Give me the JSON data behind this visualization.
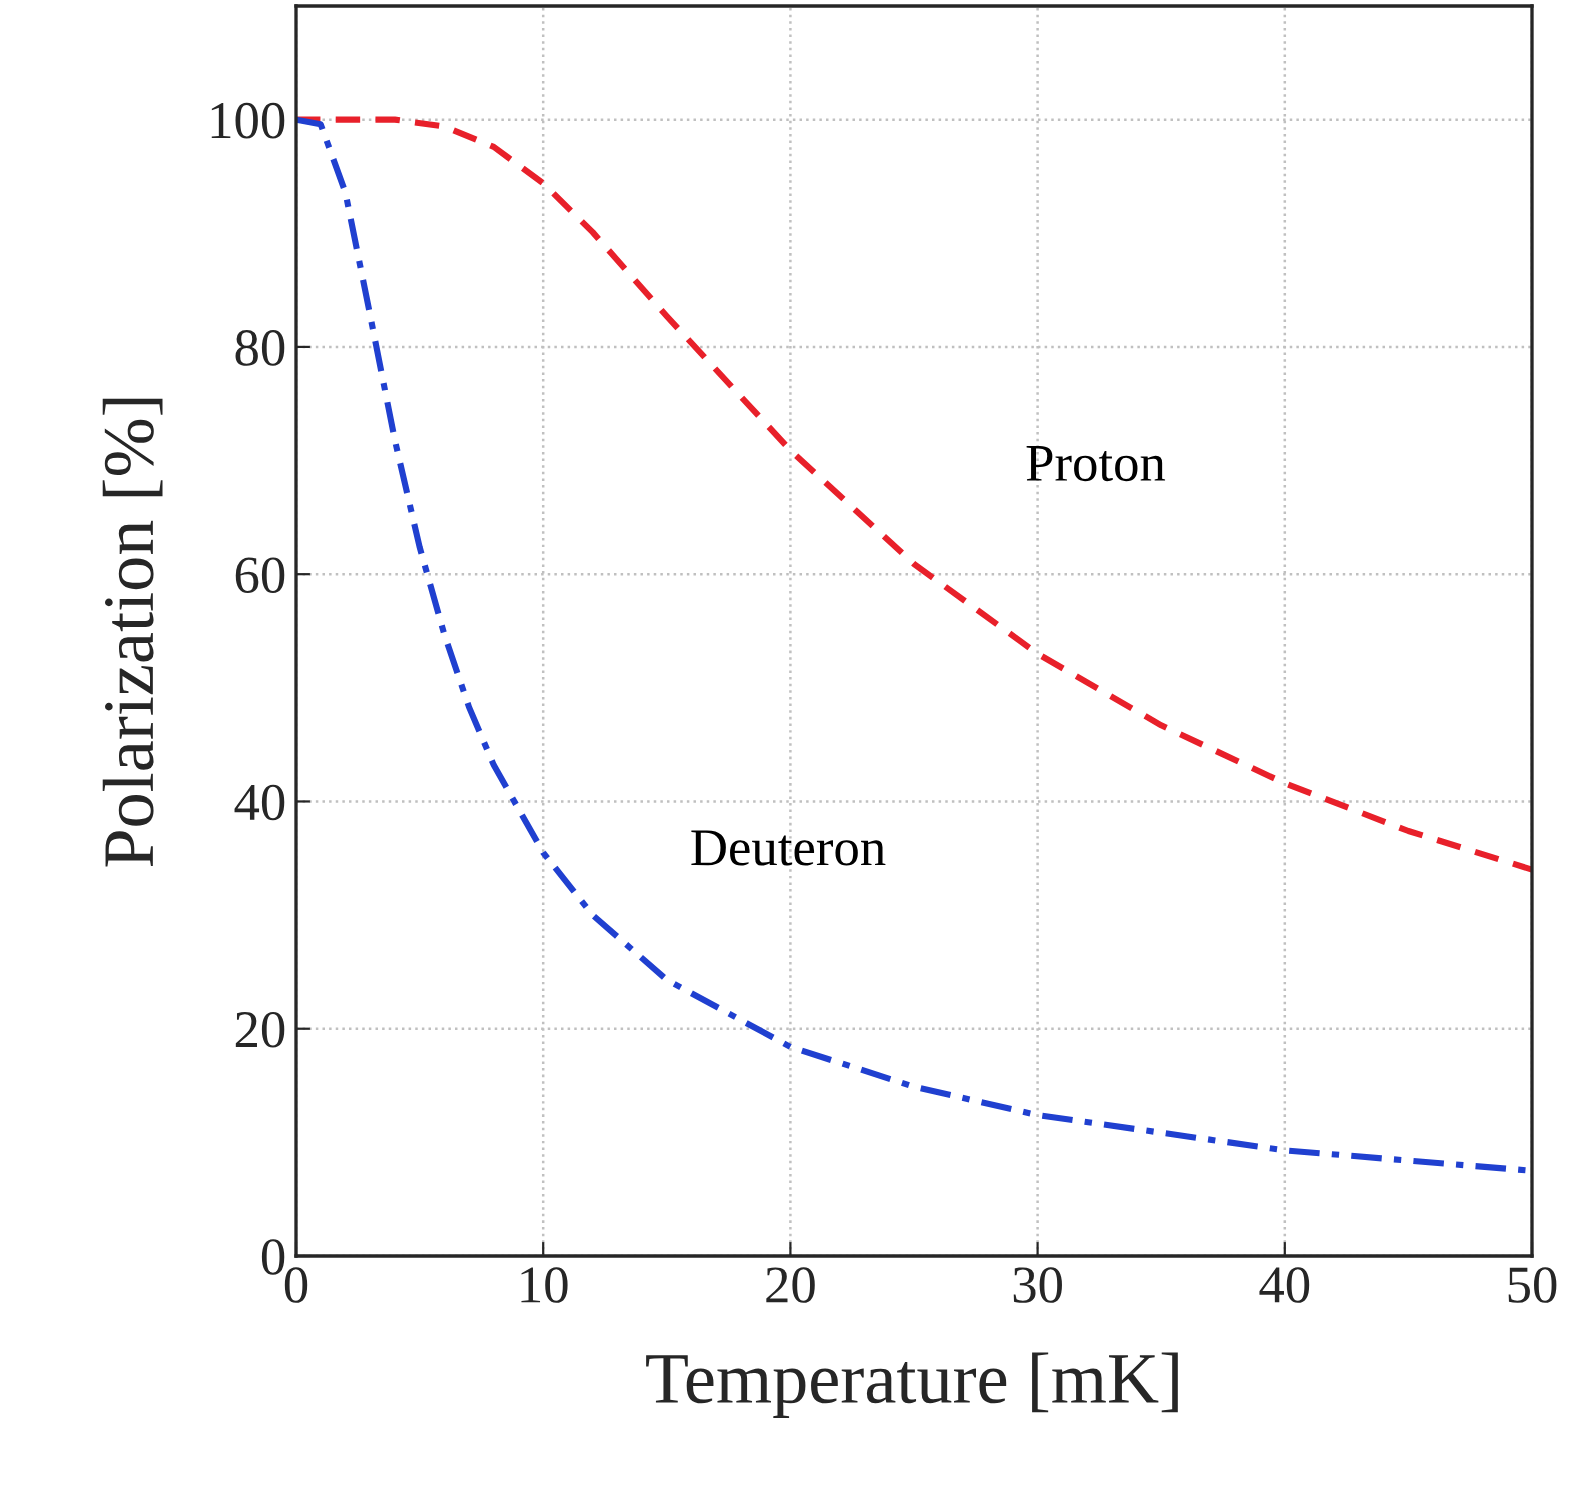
{
  "chart_data": {
    "type": "line",
    "xlabel": "Temperature [mK]",
    "ylabel": "Polarization [%]",
    "series": [
      {
        "name": "Proton",
        "color": "#e8202a",
        "line_style": "dashed",
        "x": [
          0,
          2,
          4,
          6,
          8,
          10,
          12,
          15,
          20,
          25,
          30,
          35,
          40,
          45,
          50
        ],
        "values": [
          100,
          100,
          100,
          99.4,
          97.6,
          94.4,
          90.1,
          82.7,
          70.9,
          60.9,
          53.0,
          46.7,
          41.6,
          37.4,
          34.0
        ]
      },
      {
        "name": "Deuteron",
        "color": "#2040d0",
        "line_style": "dashdot",
        "x": [
          0,
          1,
          2,
          3,
          4,
          5,
          6,
          7,
          8,
          10,
          12,
          15,
          20,
          25,
          30,
          40,
          50
        ],
        "values": [
          100,
          99.6,
          93.6,
          82.8,
          71.8,
          62.4,
          54.7,
          48.3,
          43.2,
          35.5,
          30.0,
          24.3,
          18.4,
          14.9,
          12.4,
          9.3,
          7.5
        ]
      }
    ],
    "xlim": [
      0,
      50
    ],
    "ylim": [
      0,
      110
    ],
    "xticks": [
      0,
      10,
      20,
      30,
      40,
      50
    ],
    "yticks": [
      0,
      20,
      40,
      60,
      80,
      100
    ],
    "grid": true,
    "legend": false
  }
}
